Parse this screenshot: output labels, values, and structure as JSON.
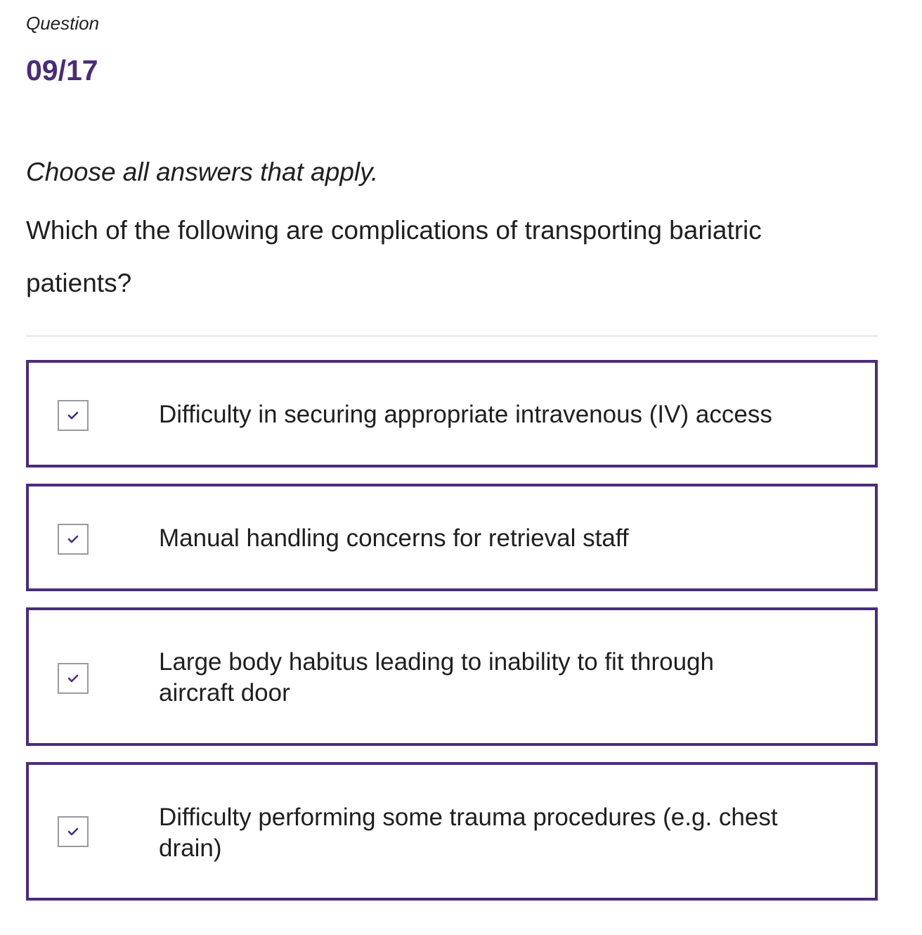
{
  "header": {
    "label": "Question",
    "counter": "09/17"
  },
  "question": {
    "instruction": "Choose all answers that apply.",
    "prompt": "Which of the following are complications of transporting bariatric patients?"
  },
  "options": [
    {
      "label": "Difficulty in securing appropriate intravenous (IV) access",
      "checked": true,
      "icon": "check-icon"
    },
    {
      "label": "Manual handling concerns for retrieval staff",
      "checked": true,
      "icon": "check-icon"
    },
    {
      "label": "Large body habitus leading to inability to fit through aircraft door",
      "checked": true,
      "icon": "check-icon"
    },
    {
      "label": "Difficulty performing some trauma procedures (e.g. chest drain)",
      "checked": true,
      "icon": "check-icon"
    }
  ],
  "colors": {
    "accent": "#4a2c7a",
    "text": "#1f1f1f",
    "checkbox_border": "#9a9a9a",
    "divider": "#e6e6e6"
  }
}
